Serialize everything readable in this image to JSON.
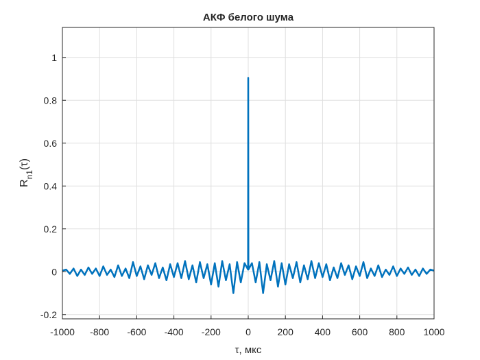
{
  "chart_data": {
    "type": "line",
    "title": "АКФ белого шума",
    "xlabel": "τ, мкс",
    "ylabel": {
      "main": "R",
      "sub": "n1",
      "arg": "(τ)"
    },
    "x": [
      -1000,
      -980,
      -960,
      -940,
      -920,
      -900,
      -880,
      -860,
      -840,
      -820,
      -800,
      -780,
      -760,
      -740,
      -720,
      -700,
      -680,
      -660,
      -640,
      -620,
      -600,
      -580,
      -560,
      -540,
      -520,
      -500,
      -480,
      -460,
      -440,
      -420,
      -400,
      -380,
      -360,
      -340,
      -320,
      -300,
      -280,
      -260,
      -240,
      -220,
      -200,
      -180,
      -160,
      -140,
      -120,
      -100,
      -80,
      -60,
      -40,
      -20,
      -1,
      0,
      1,
      20,
      40,
      60,
      80,
      100,
      120,
      140,
      160,
      180,
      200,
      220,
      240,
      260,
      280,
      300,
      320,
      340,
      360,
      380,
      400,
      420,
      440,
      460,
      480,
      500,
      520,
      540,
      560,
      580,
      600,
      620,
      640,
      660,
      680,
      700,
      720,
      740,
      760,
      780,
      800,
      820,
      840,
      860,
      880,
      900,
      920,
      940,
      960,
      980,
      1000
    ],
    "series": [
      {
        "name": "R",
        "color": "#0072bd",
        "values": [
          0.005,
          0.01,
          -0.01,
          0.015,
          -0.02,
          0.01,
          -0.015,
          0.02,
          -0.01,
          0.015,
          -0.02,
          0.025,
          -0.015,
          0.01,
          -0.025,
          0.03,
          -0.02,
          0.015,
          -0.03,
          0.045,
          -0.02,
          0.025,
          -0.035,
          0.03,
          -0.015,
          0.04,
          -0.03,
          0.02,
          -0.04,
          0.035,
          -0.025,
          0.04,
          -0.03,
          0.05,
          -0.035,
          0.03,
          -0.05,
          0.045,
          -0.03,
          0.035,
          -0.06,
          0.04,
          -0.07,
          0.05,
          -0.04,
          0.035,
          -0.1,
          0.045,
          -0.05,
          0.04,
          0.01,
          0.905,
          0.01,
          0.04,
          -0.05,
          0.045,
          -0.1,
          0.035,
          -0.04,
          0.05,
          -0.07,
          0.04,
          -0.06,
          0.035,
          -0.03,
          0.045,
          -0.05,
          0.03,
          -0.035,
          0.05,
          -0.03,
          0.04,
          -0.025,
          0.035,
          -0.04,
          0.02,
          -0.03,
          0.04,
          -0.015,
          0.03,
          -0.035,
          0.025,
          -0.02,
          0.045,
          -0.03,
          0.015,
          -0.02,
          0.03,
          -0.025,
          0.01,
          -0.015,
          0.025,
          -0.02,
          0.015,
          -0.01,
          0.02,
          -0.015,
          0.01,
          -0.02,
          0.015,
          -0.01,
          0.01,
          0.005
        ]
      }
    ],
    "xlim": [
      -1000,
      1000
    ],
    "xticks": [
      -1000,
      -800,
      -600,
      -400,
      -200,
      0,
      200,
      400,
      600,
      800,
      1000
    ],
    "ylim": [
      -0.22,
      1.14
    ],
    "yticks": [
      -0.2,
      0,
      0.2,
      0.4,
      0.6,
      0.8,
      1
    ],
    "grid": true
  }
}
